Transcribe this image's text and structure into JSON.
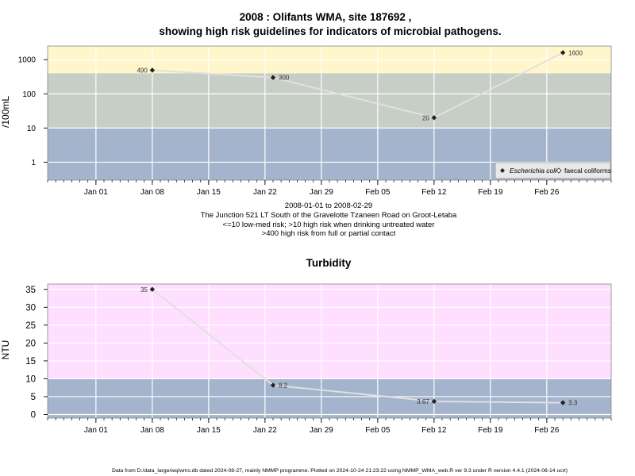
{
  "title": {
    "line1": "2008 : Olifants WMA, site 187692 ,",
    "line2": "showing high risk guidelines for indicators of microbial pathogens."
  },
  "subtitle_lines": [
    "2008-01-01 to 2008-02-29",
    "The Junction 521 LT South of the Gravelotte Tzaneen Road on Groot-Letaba",
    "<=10 low-med risk; >10 high risk when drinking untreated water",
    ">400 high risk from full or partial contact"
  ],
  "footer": "Data from D:/data_large/wq/wms.db dated 2024-08-27, mainly NMMP programme. Plotted on 2024-10-24 21:23:22 using NMMP_WMA_web.R ver 9.3 under R version 4.4.1 (2024-06-14 ucrt)",
  "colors": {
    "band_low": "#a4b4cc",
    "band_mid": "#c6cec6",
    "band_high": "#fff6cc",
    "band_pink": "#ffdfff",
    "line": "#e0e0e0",
    "grid": "#ffffff",
    "point": "#222222"
  },
  "chart_data": [
    {
      "type": "line",
      "title": "",
      "ylabel": "/100mL",
      "xlabel": "",
      "y_scale": "log10",
      "xlim": [
        "2007-12-26",
        "2008-03-05"
      ],
      "ylim": [
        0.3,
        2500
      ],
      "x_tick_labels": [
        "Jan 01",
        "Jan 08",
        "Jan 15",
        "Jan 22",
        "Jan 29",
        "Feb 05",
        "Feb 12",
        "Feb 19",
        "Feb 26"
      ],
      "x_tick_dates": [
        "2008-01-01",
        "2008-01-08",
        "2008-01-15",
        "2008-01-22",
        "2008-01-29",
        "2008-02-05",
        "2008-02-12",
        "2008-02-19",
        "2008-02-26"
      ],
      "y_tick_labels": [
        "1",
        "10",
        "100",
        "1000"
      ],
      "y_tick_values": [
        1,
        10,
        100,
        1000
      ],
      "bands": [
        {
          "from": 0.3,
          "to": 10,
          "color": "#a4b4cc"
        },
        {
          "from": 10,
          "to": 400,
          "color": "#c6cec6"
        },
        {
          "from": 400,
          "to": 2500,
          "color": "#fff6cc"
        }
      ],
      "legend": {
        "position": "bottom-right",
        "entries": [
          {
            "label": "Escherichia coli",
            "marker": "filled-diamond"
          },
          {
            "label": "faecal coliforms",
            "marker": "open-diamond"
          }
        ]
      },
      "series": [
        {
          "name": "Escherichia coli",
          "x": [
            "2008-01-08",
            "2008-01-23",
            "2008-02-12",
            "2008-02-28"
          ],
          "values": [
            490,
            300,
            20,
            1600
          ],
          "labels": [
            "490",
            "300",
            "20",
            "1600"
          ],
          "label_side": [
            "left",
            "right",
            "left",
            "right"
          ]
        }
      ]
    },
    {
      "type": "line",
      "title": "Turbidity",
      "ylabel": "NTU",
      "xlabel": "",
      "xlim": [
        "2007-12-26",
        "2008-03-05"
      ],
      "ylim": [
        -1,
        36.5
      ],
      "x_tick_labels": [
        "Jan 01",
        "Jan 08",
        "Jan 15",
        "Jan 22",
        "Jan 29",
        "Feb 05",
        "Feb 12",
        "Feb 19",
        "Feb 26"
      ],
      "x_tick_dates": [
        "2008-01-01",
        "2008-01-08",
        "2008-01-15",
        "2008-01-22",
        "2008-01-29",
        "2008-02-05",
        "2008-02-12",
        "2008-02-19",
        "2008-02-26"
      ],
      "y_tick_labels": [
        "0",
        "5",
        "10",
        "15",
        "20",
        "25",
        "30",
        "35"
      ],
      "y_tick_values": [
        0,
        5,
        10,
        15,
        20,
        25,
        30,
        35
      ],
      "bands": [
        {
          "from": -1,
          "to": 10,
          "color": "#a4b4cc"
        },
        {
          "from": 10,
          "to": 36.5,
          "color": "#ffdfff"
        }
      ],
      "series": [
        {
          "x": [
            "2008-01-08",
            "2008-01-23",
            "2008-02-12",
            "2008-02-28"
          ],
          "values": [
            35,
            8.2,
            3.67,
            3.3
          ],
          "labels": [
            "35",
            "8.2",
            "3.67",
            "3.3"
          ],
          "label_side": [
            "left",
            "right",
            "left",
            "right"
          ]
        }
      ]
    }
  ]
}
